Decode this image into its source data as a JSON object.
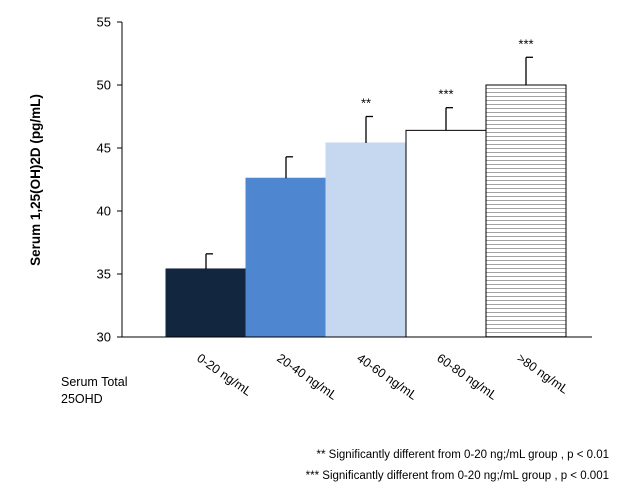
{
  "chart_data": {
    "type": "bar",
    "title": "",
    "ylabel": "Serum 1,25(OH)2D (pg/mL)",
    "xlabel_lines": [
      "Serum Total",
      "25OHD"
    ],
    "categories": [
      "0-20 ng/mL",
      "20-40 ng/mL",
      "40-60 ng/mL",
      "60-80 ng/mL",
      ">80 ng/mL"
    ],
    "values": [
      35.4,
      42.6,
      45.4,
      46.4,
      50.0
    ],
    "errors": [
      1.2,
      1.7,
      2.1,
      1.8,
      2.2
    ],
    "significance": [
      "",
      "",
      "**",
      "***",
      "***"
    ],
    "colors": [
      "#13263f",
      "#4e87cf",
      "#c6d8f0",
      "#ffffff",
      "#ffffff"
    ],
    "patterns": [
      "solid",
      "solid",
      "solid",
      "solid",
      "horizontal-lines"
    ],
    "ylim": [
      30,
      55
    ],
    "yticks": [
      30,
      35,
      40,
      45,
      50,
      55
    ],
    "grid": false,
    "footnotes": [
      "** Significantly different from 0-20 ng;/mL group , p < 0.01",
      "*** Significantly different from 0-20 ng;/mL group , p < 0.001"
    ]
  }
}
